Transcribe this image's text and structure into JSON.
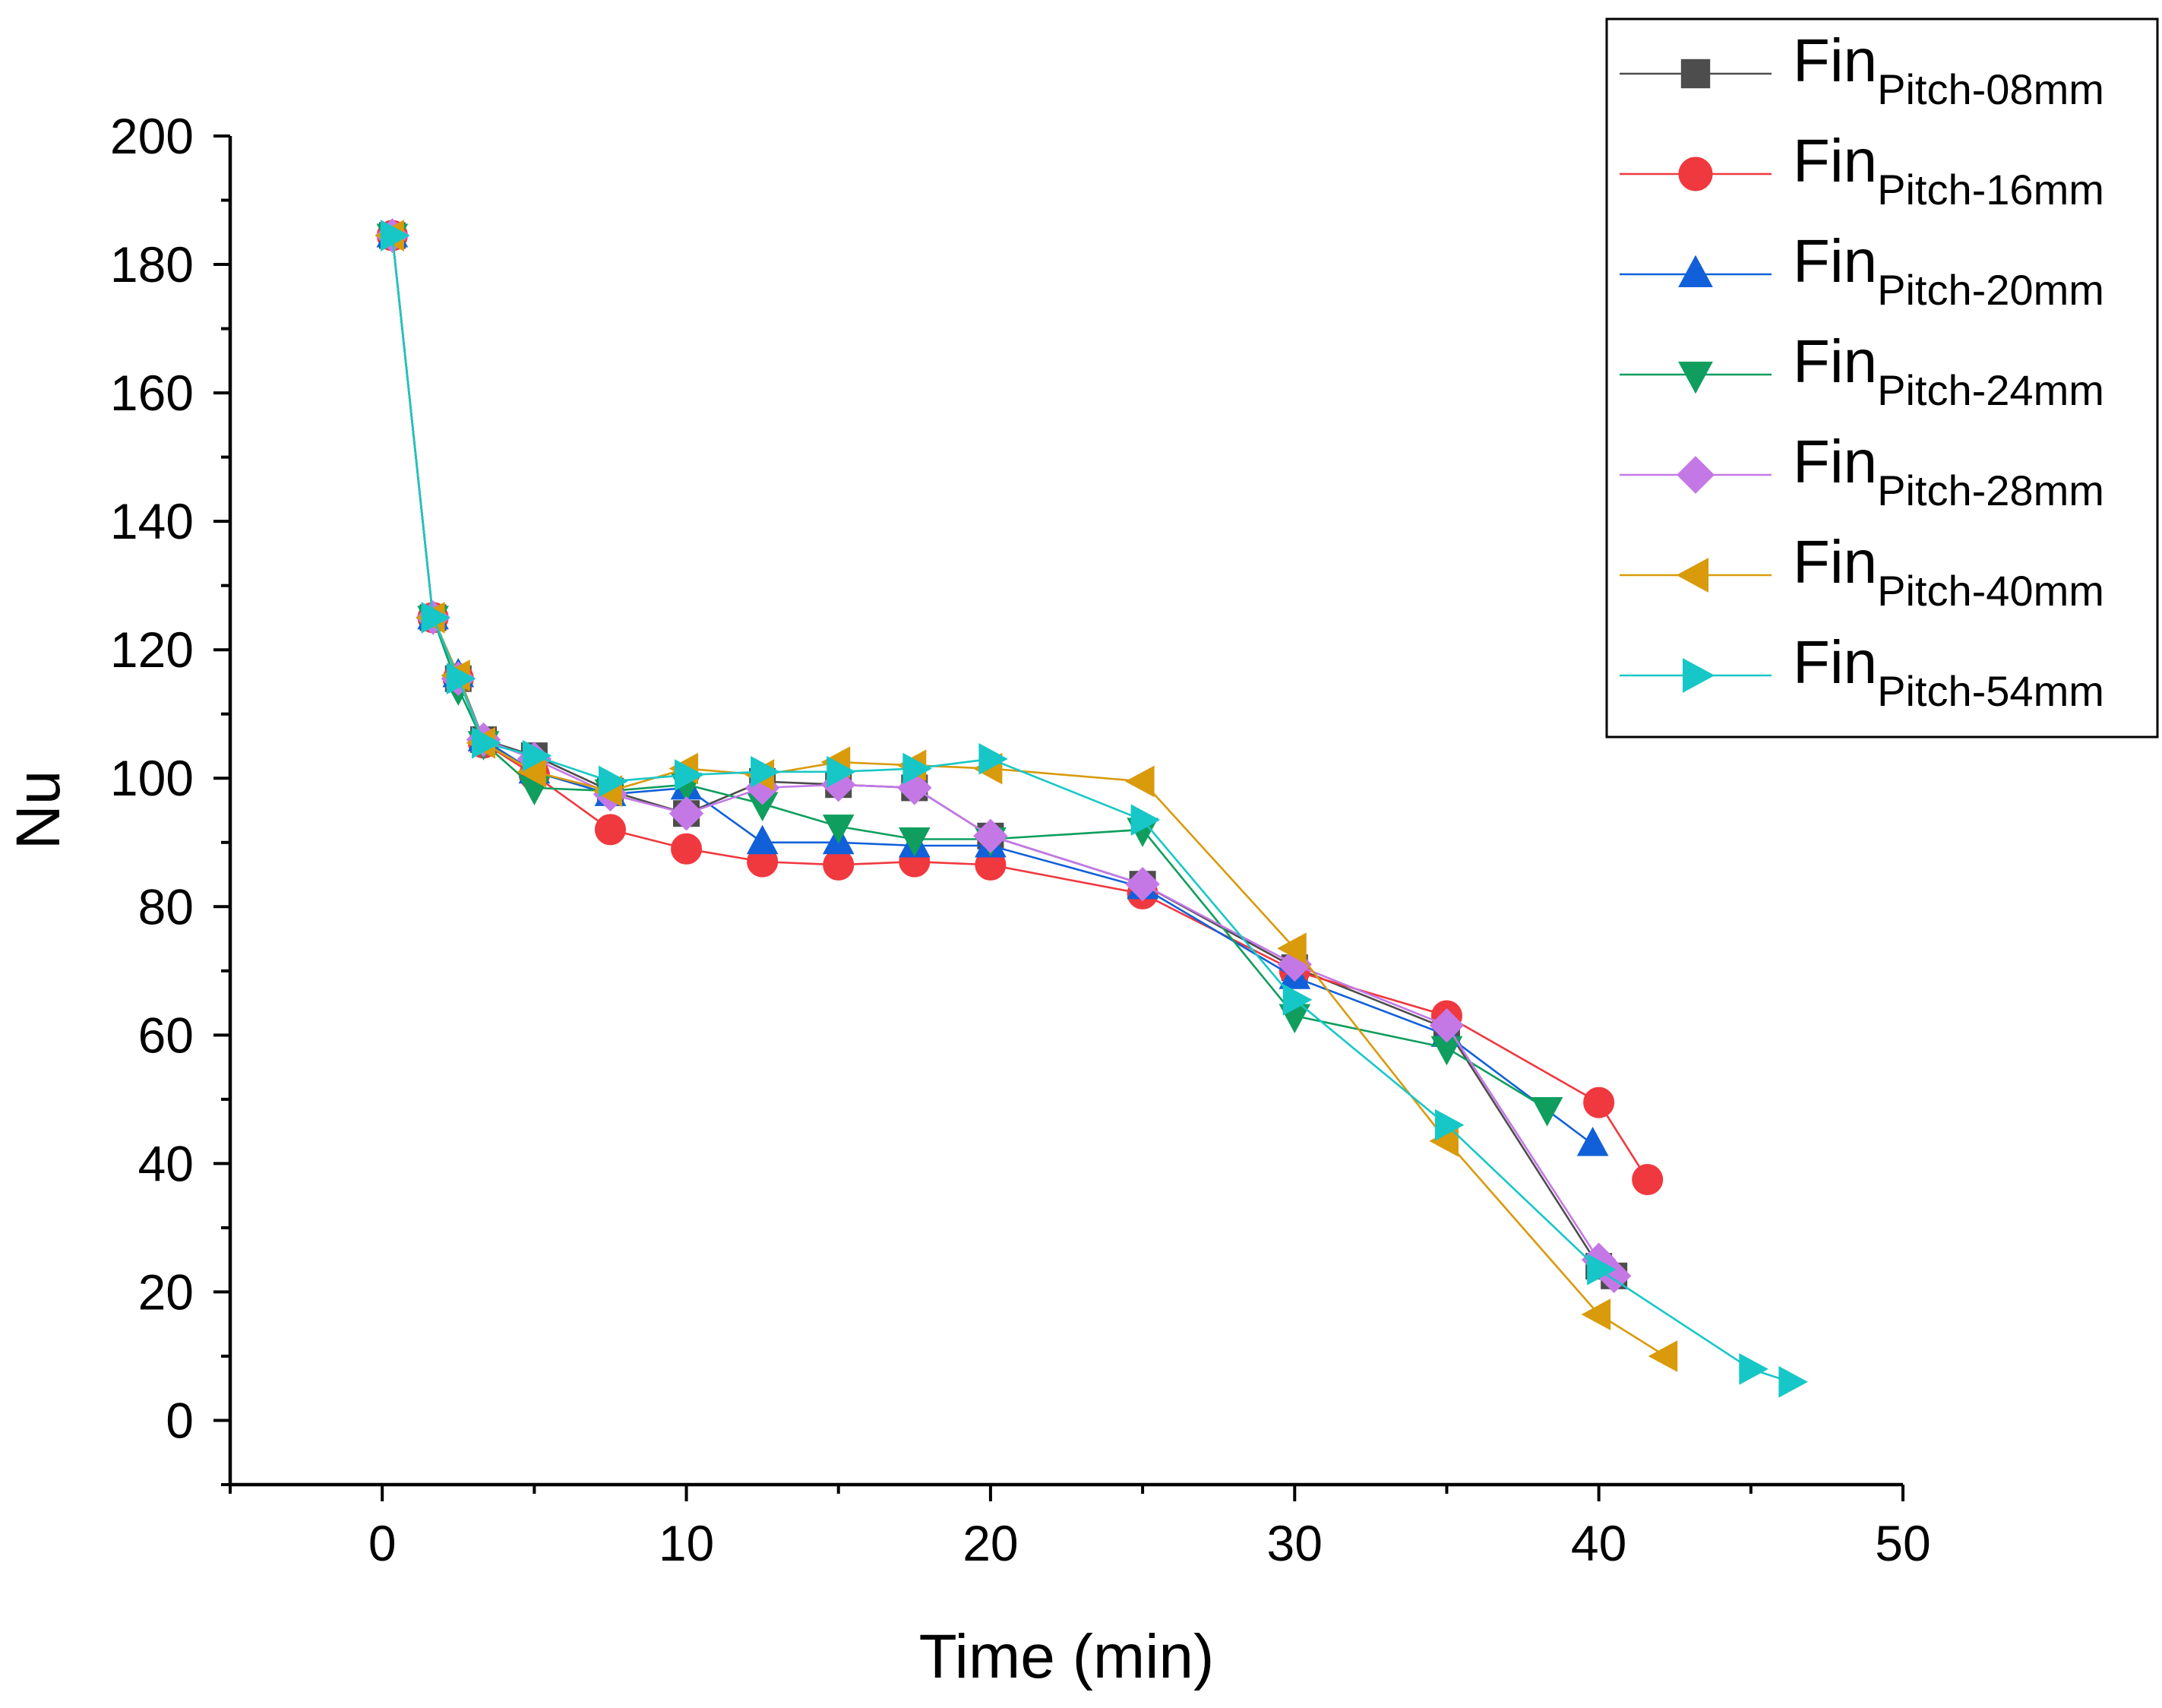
{
  "chart_data": {
    "type": "line",
    "xlabel": "Time (min)",
    "ylabel": "Nu",
    "xlim": [
      -5,
      50
    ],
    "ylim": [
      -10,
      200
    ],
    "x_ticks": [
      0,
      10,
      20,
      30,
      40,
      50
    ],
    "y_ticks": [
      0,
      20,
      40,
      60,
      80,
      100,
      120,
      140,
      160,
      180,
      200
    ],
    "grid": false,
    "legend_position": "top-right",
    "series": [
      {
        "name": "Fin",
        "name_sub": "Pitch-08mm",
        "color": "#4d4d4d",
        "marker": "square",
        "x": [
          0.33,
          1.67,
          2.5,
          3.33,
          5,
          7.5,
          10,
          12.5,
          15,
          17.5,
          20,
          25,
          30,
          35,
          40,
          40.5
        ],
        "y": [
          184.5,
          125,
          115.5,
          106,
          103.5,
          98,
          94.5,
          99.5,
          99,
          98.5,
          91,
          83.5,
          70.5,
          61,
          24,
          22.5
        ]
      },
      {
        "name": "Fin",
        "name_sub": "Pitch-16mm",
        "color": "#f0383f",
        "marker": "circle",
        "x": [
          0.33,
          1.67,
          2.5,
          3.33,
          5,
          7.5,
          10,
          12.5,
          15,
          17.5,
          20,
          25,
          30,
          35,
          40,
          41.6
        ],
        "y": [
          184.5,
          125,
          115.5,
          105.5,
          100.5,
          92,
          89,
          87,
          86.5,
          87,
          86.5,
          82,
          70,
          63,
          49.5,
          37.5
        ]
      },
      {
        "name": "Fin",
        "name_sub": "Pitch-20mm",
        "color": "#1160d9",
        "marker": "triangle-up",
        "x": [
          0.33,
          1.67,
          2.5,
          3.33,
          5,
          7.5,
          10,
          12.5,
          15,
          17.5,
          20,
          25,
          30,
          35,
          39.8
        ],
        "y": [
          184.5,
          125,
          116,
          106,
          101,
          97.5,
          98.5,
          90,
          90,
          89.5,
          89.5,
          83,
          69,
          60,
          43
        ]
      },
      {
        "name": "Fin",
        "name_sub": "Pitch-24mm",
        "color": "#0f9e5e",
        "marker": "triangle-down",
        "x": [
          0.33,
          1.67,
          2.5,
          3.33,
          5,
          7.5,
          10,
          12.5,
          15,
          17.5,
          20,
          25,
          30,
          35,
          38.3
        ],
        "y": [
          184.5,
          125,
          114,
          105.5,
          98.5,
          98,
          99,
          96,
          92.5,
          90.5,
          90.5,
          92,
          63,
          58,
          48.5
        ]
      },
      {
        "name": "Fin",
        "name_sub": "Pitch-28mm",
        "color": "#c478e6",
        "marker": "diamond",
        "x": [
          0.33,
          1.67,
          2.5,
          3.33,
          5,
          7.5,
          10,
          12.5,
          15,
          17.5,
          20,
          25,
          30,
          35,
          40,
          40.5
        ],
        "y": [
          184.5,
          125,
          115.5,
          106,
          103,
          97.5,
          94.5,
          98.5,
          99,
          98.5,
          91,
          83.5,
          71,
          61.5,
          25,
          22.5
        ]
      },
      {
        "name": "Fin",
        "name_sub": "Pitch-40mm",
        "color": "#d99a0b",
        "marker": "triangle-left",
        "x": [
          0.33,
          1.67,
          2.5,
          3.33,
          5,
          7.5,
          10,
          12.5,
          15,
          17.5,
          20,
          25,
          30,
          35,
          40,
          42.2
        ],
        "y": [
          184.5,
          125,
          116,
          105.5,
          101,
          98,
          101.5,
          100.5,
          102.5,
          102,
          101.5,
          99.5,
          73.5,
          43.5,
          16.5,
          10
        ]
      },
      {
        "name": "Fin",
        "name_sub": "Pitch-54mm",
        "color": "#17c7c7",
        "marker": "triangle-right",
        "x": [
          0.33,
          1.67,
          2.5,
          3.33,
          5,
          7.5,
          10,
          12.5,
          15,
          17.5,
          20,
          25,
          30,
          35,
          40,
          45,
          46.3
        ],
        "y": [
          184.5,
          125,
          115.5,
          105.5,
          103.5,
          99.5,
          100.5,
          101,
          101,
          101.5,
          103,
          93.5,
          65.5,
          46,
          23.5,
          8,
          6
        ]
      }
    ]
  }
}
